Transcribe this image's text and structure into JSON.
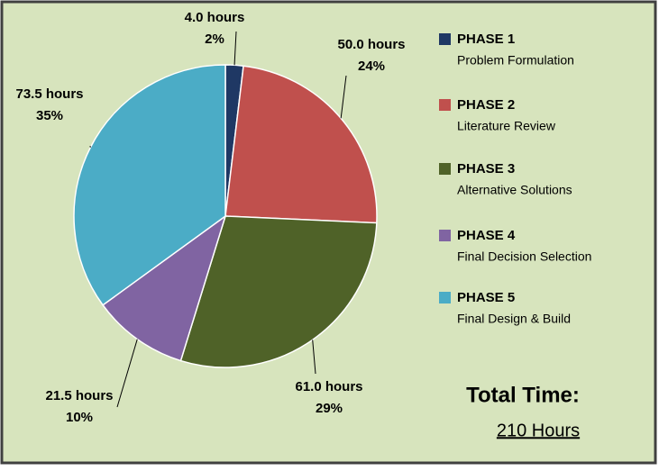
{
  "chart_data": {
    "type": "pie",
    "categories": [
      "PHASE 1",
      "PHASE 2",
      "PHASE 3",
      "PHASE 4",
      "PHASE 5"
    ],
    "descriptions": [
      "Problem Formulation",
      "Literature Review",
      "Alternative Solutions",
      "Final Decision Selection",
      "Final Design & Build"
    ],
    "values": [
      4.0,
      50.0,
      61.0,
      21.5,
      73.5
    ],
    "value_labels": [
      "4.0 hours",
      "50.0 hours",
      "61.0 hours",
      "21.5 hours",
      "73.5 hours"
    ],
    "percent_labels": [
      "2%",
      "24%",
      "29%",
      "10%",
      "35%"
    ],
    "colors": [
      "#1f3864",
      "#c0504d",
      "#4f6228",
      "#8064a2",
      "#4bacc6"
    ],
    "total_title": "Total Time:",
    "total_value": "210 Hours"
  }
}
